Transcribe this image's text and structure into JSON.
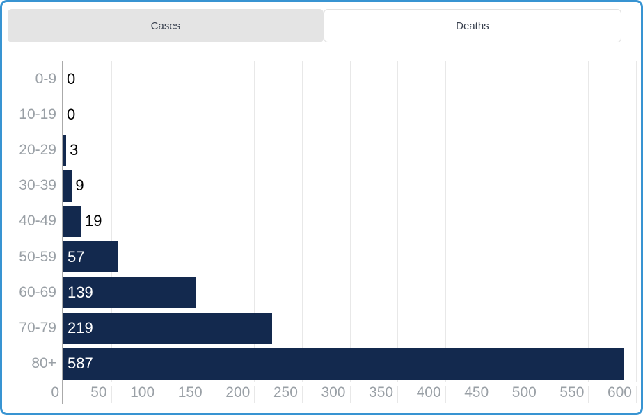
{
  "tabs": {
    "cases": {
      "label": "Cases",
      "active": false
    },
    "deaths": {
      "label": "Deaths",
      "active": true
    }
  },
  "chart_data": {
    "type": "bar",
    "orientation": "horizontal",
    "title": "",
    "series_name": "Deaths",
    "categories": [
      "0-9",
      "10-19",
      "20-29",
      "30-39",
      "40-49",
      "50-59",
      "60-69",
      "70-79",
      "80+"
    ],
    "values": [
      0,
      0,
      3,
      9,
      19,
      57,
      139,
      219,
      587
    ],
    "xlim": [
      0,
      600
    ],
    "x_ticks": [
      0,
      50,
      100,
      150,
      200,
      250,
      300,
      350,
      400,
      450,
      500,
      550,
      600
    ],
    "grid": true,
    "legend": "none",
    "bar_color": "#13294e",
    "value_label_inside_color": "#ffffff",
    "value_label_outside_color": "#000000",
    "axis_label_color": "#9aa0a6",
    "gridline_color": "#e8e8e8"
  },
  "colors": {
    "panel_border": "#3894d2",
    "tab_inactive_bg": "#e4e4e4",
    "tab_active_bg": "#ffffff",
    "tab_text": "#39414f"
  }
}
